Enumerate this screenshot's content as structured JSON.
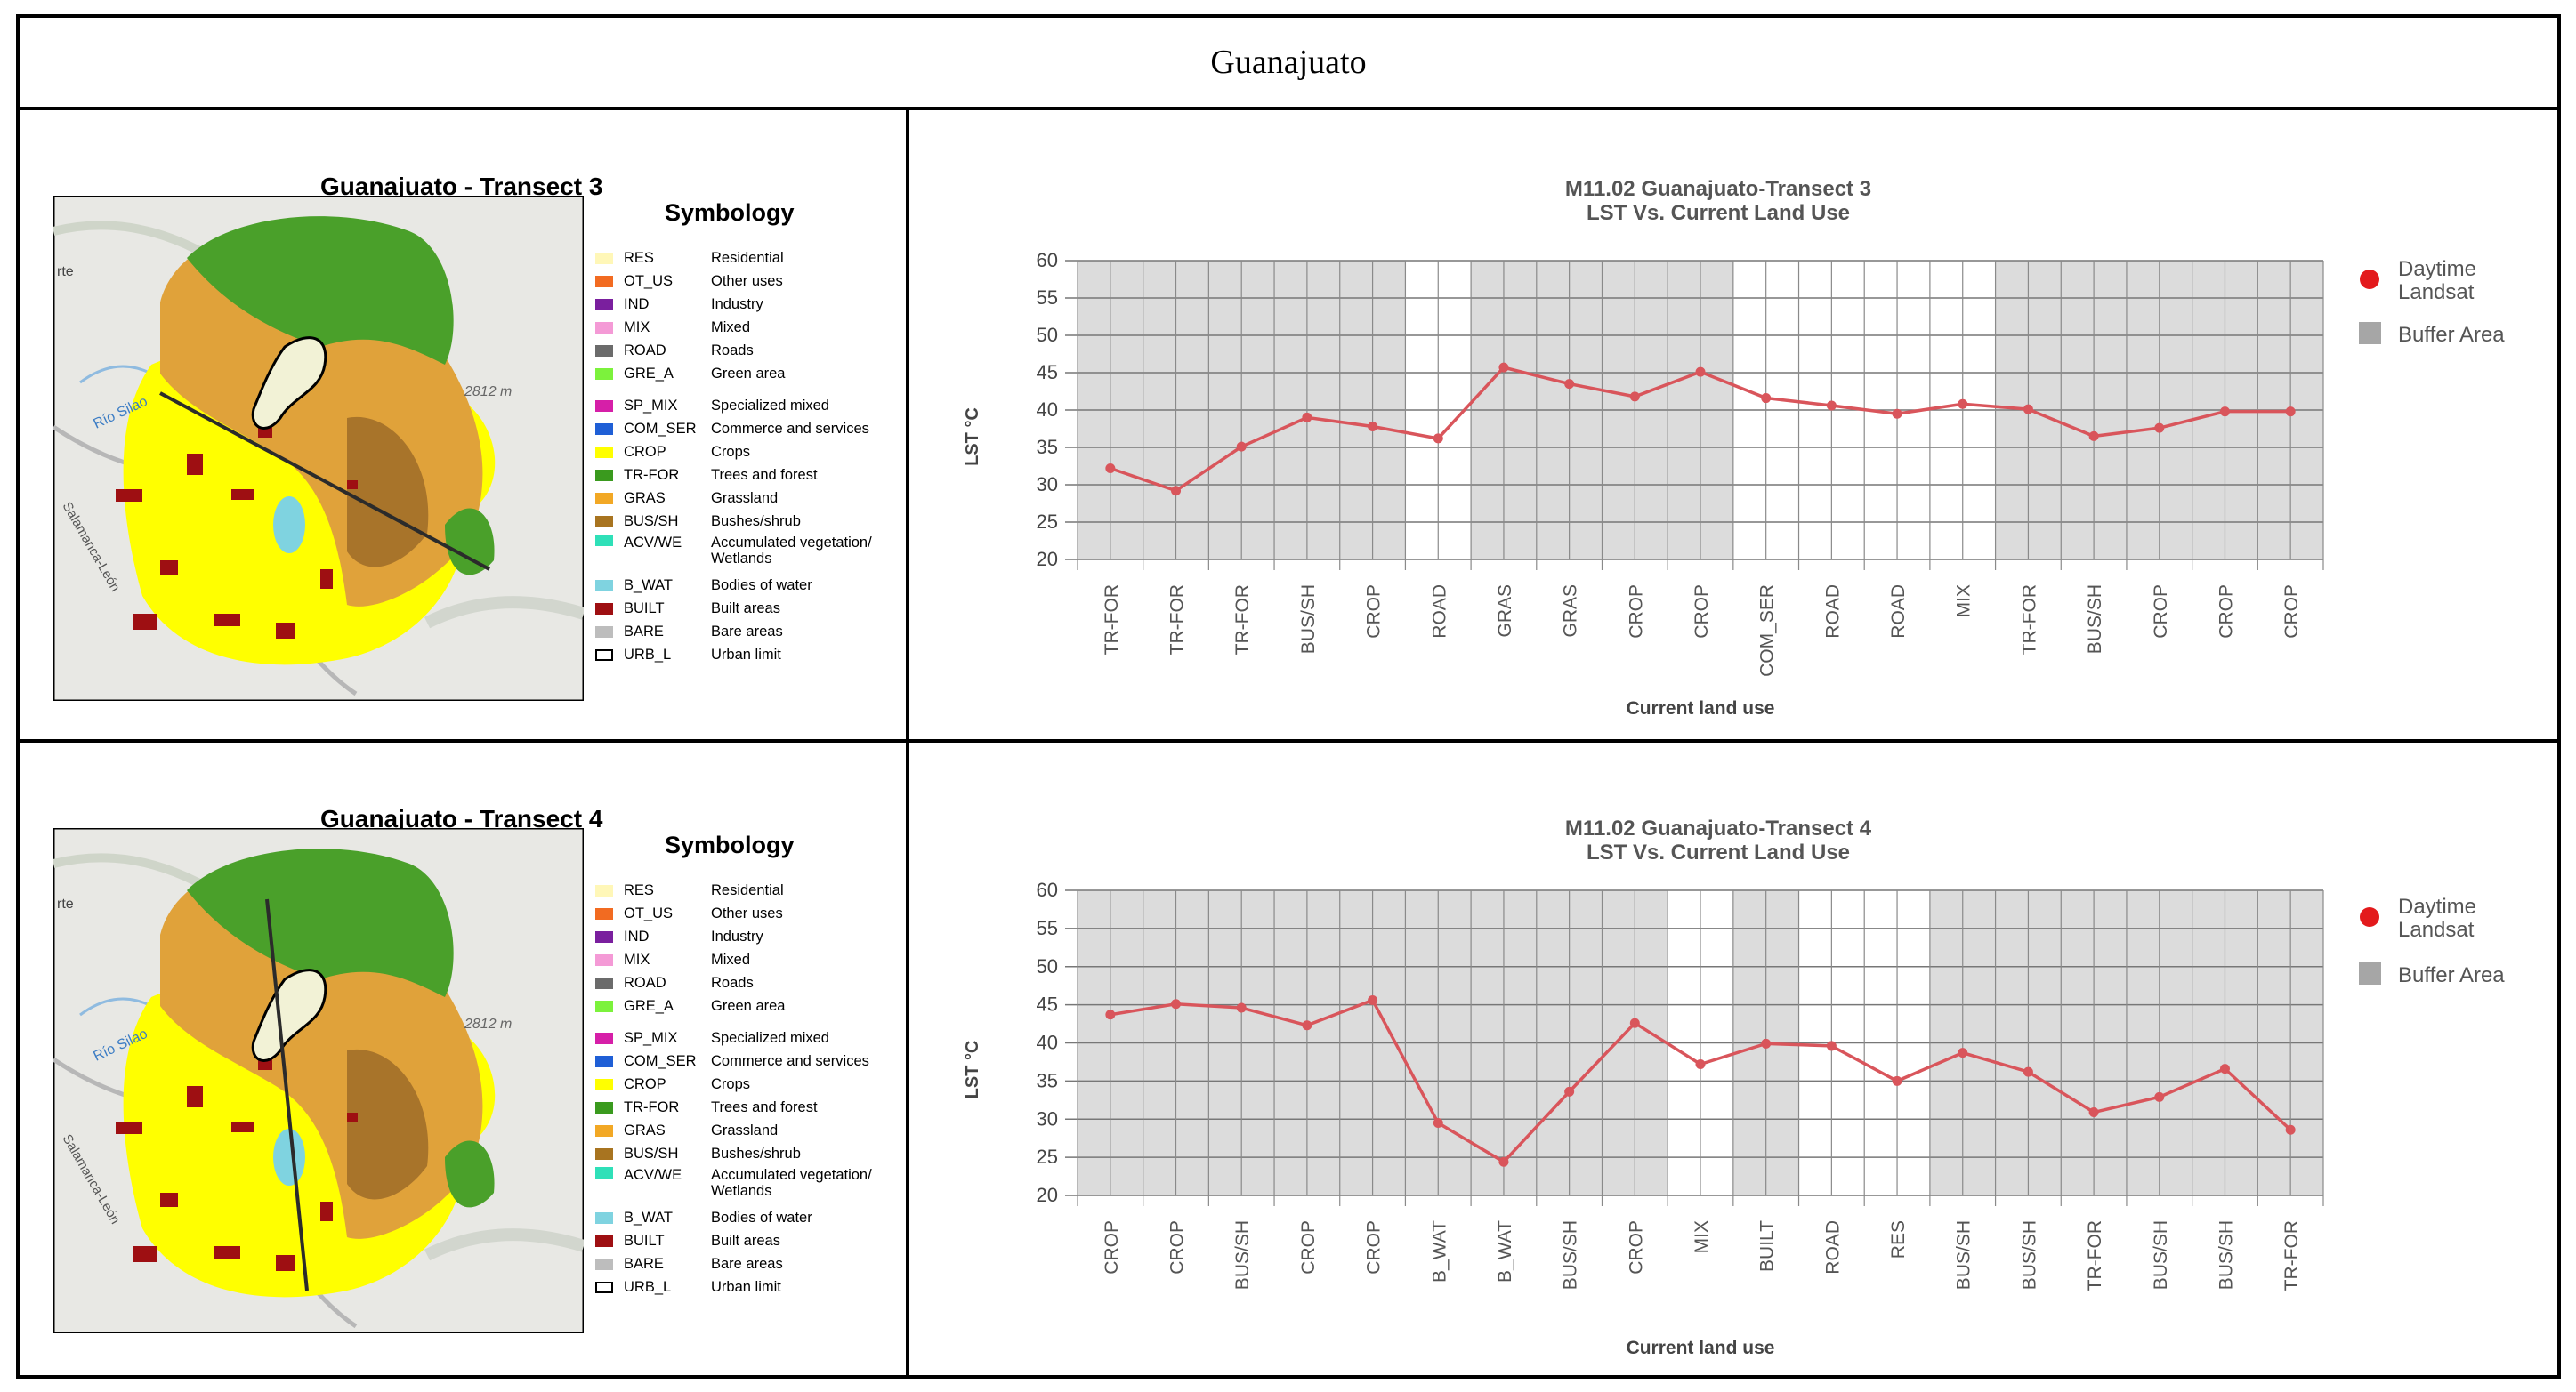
{
  "page": {
    "title": "Guanajuato"
  },
  "legend": {
    "title": "Symbology",
    "items": [
      {
        "code": "RES",
        "label": "Residential",
        "color": "#fff7b8",
        "outline": false
      },
      {
        "code": "OT_US",
        "label": "Other uses",
        "color": "#f26b21",
        "outline": false
      },
      {
        "code": "IND",
        "label": "Industry",
        "color": "#7a1f9e",
        "outline": false
      },
      {
        "code": "MIX",
        "label": "Mixed",
        "color": "#f49ad6",
        "outline": false
      },
      {
        "code": "ROAD",
        "label": "Roads",
        "color": "#6b6b6b",
        "outline": false
      },
      {
        "code": "GRE_A",
        "label": "Green area",
        "color": "#7cf23c",
        "outline": false
      },
      {
        "code": "SP_MIX",
        "label": "Specialized mixed",
        "color": "#d61fa8",
        "outline": false
      },
      {
        "code": "COM_SER",
        "label": "Commerce and services",
        "color": "#1f5fd6",
        "outline": false
      },
      {
        "code": "CROP",
        "label": "Crops",
        "color": "#ffff00",
        "outline": false
      },
      {
        "code": "TR-FOR",
        "label": "Trees and forest",
        "color": "#3a9a1e",
        "outline": false
      },
      {
        "code": "GRAS",
        "label": "Grassland",
        "color": "#f2a825",
        "outline": false
      },
      {
        "code": "BUS/SH",
        "label": "Bushes/shrub",
        "color": "#a87420",
        "outline": false
      },
      {
        "code": "ACV/WE",
        "label": "Accumulated vegetation/ Wetlands",
        "color": "#2fe0b8",
        "outline": false
      },
      {
        "code": "B_WAT",
        "label": "Bodies of water",
        "color": "#7fd3e0",
        "outline": false
      },
      {
        "code": "BUILT",
        "label": "Built areas",
        "color": "#9e0f12",
        "outline": false
      },
      {
        "code": "BARE",
        "label": "Bare areas",
        "color": "#bdbdbd",
        "outline": false
      },
      {
        "code": "URB_L",
        "label": "Urban limit",
        "color": "#ffffff",
        "outline": true
      }
    ]
  },
  "maps": [
    {
      "title": "Guanajuato - Transect 3",
      "labels": {
        "city_fragment": "rte",
        "river": "Río Silao",
        "elevation": "2812 m",
        "road": "Salamanca-León"
      }
    },
    {
      "title": "Guanajuato - Transect 4",
      "labels": {
        "city_fragment": "rte",
        "river": "Río Silao",
        "elevation": "2812 m",
        "road": "Salamanca-León"
      }
    }
  ],
  "chart_data": [
    {
      "type": "line",
      "title": "M11.02 Guanajuato-Transect 3",
      "subtitle": "LST Vs. Current Land Use",
      "xlabel": "Current land use",
      "ylabel": "LST °C",
      "ylim": [
        20,
        60
      ],
      "yticks": [
        20,
        25,
        30,
        35,
        40,
        45,
        50,
        55,
        60
      ],
      "categories": [
        "TR-FOR",
        "TR-FOR",
        "TR-FOR",
        "BUS/SH",
        "CROP",
        "ROAD",
        "GRAS",
        "GRAS",
        "CROP",
        "CROP",
        "COM_SER",
        "ROAD",
        "ROAD",
        "MIX",
        "TR-FOR",
        "BUS/SH",
        "CROP",
        "CROP",
        "CROP"
      ],
      "series": [
        {
          "name": "Daytime Landsat",
          "values": [
            32.2,
            29.2,
            35.1,
            39.0,
            37.8,
            36.2,
            45.7,
            43.5,
            41.8,
            45.1,
            41.6,
            40.6,
            39.5,
            40.8,
            40.1,
            36.5,
            37.6,
            39.8,
            39.8
          ]
        }
      ],
      "buffer_area": [
        true,
        true,
        true,
        true,
        true,
        false,
        true,
        true,
        true,
        true,
        false,
        false,
        false,
        false,
        true,
        true,
        true,
        true,
        true
      ],
      "legend": [
        {
          "label": "Daytime Landsat",
          "color": "#e31a1c"
        },
        {
          "label": "Buffer Area",
          "color": "#a6a6a6"
        }
      ],
      "line_color": "#d9555b",
      "grid": true
    },
    {
      "type": "line",
      "title": "M11.02 Guanajuato-Transect 4",
      "subtitle": "LST Vs. Current Land Use",
      "xlabel": "Current land use",
      "ylabel": "LST °C",
      "ylim": [
        20,
        60
      ],
      "yticks": [
        20,
        25,
        30,
        35,
        40,
        45,
        50,
        55,
        60
      ],
      "categories": [
        "CROP",
        "CROP",
        "BUS/SH",
        "CROP",
        "CROP",
        "B_WAT",
        "B_WAT",
        "BUS/SH",
        "CROP",
        "MIX",
        "BUILT",
        "ROAD",
        "RES",
        "BUS/SH",
        "BUS/SH",
        "TR-FOR",
        "BUS/SH",
        "BUS/SH",
        "TR-FOR"
      ],
      "series": [
        {
          "name": "Daytime Landsat",
          "values": [
            43.7,
            45.1,
            44.6,
            42.3,
            45.6,
            29.5,
            24.4,
            33.6,
            42.6,
            37.2,
            39.9,
            39.6,
            35.0,
            38.7,
            36.2,
            30.9,
            32.9,
            36.6,
            28.6
          ]
        }
      ],
      "buffer_area": [
        true,
        true,
        true,
        true,
        true,
        true,
        true,
        true,
        true,
        false,
        true,
        false,
        false,
        true,
        true,
        true,
        true,
        true,
        true
      ],
      "legend": [
        {
          "label": "Daytime Landsat",
          "color": "#e31a1c"
        },
        {
          "label": "Buffer Area",
          "color": "#a6a6a6"
        }
      ],
      "line_color": "#d9555b",
      "grid": true
    }
  ]
}
